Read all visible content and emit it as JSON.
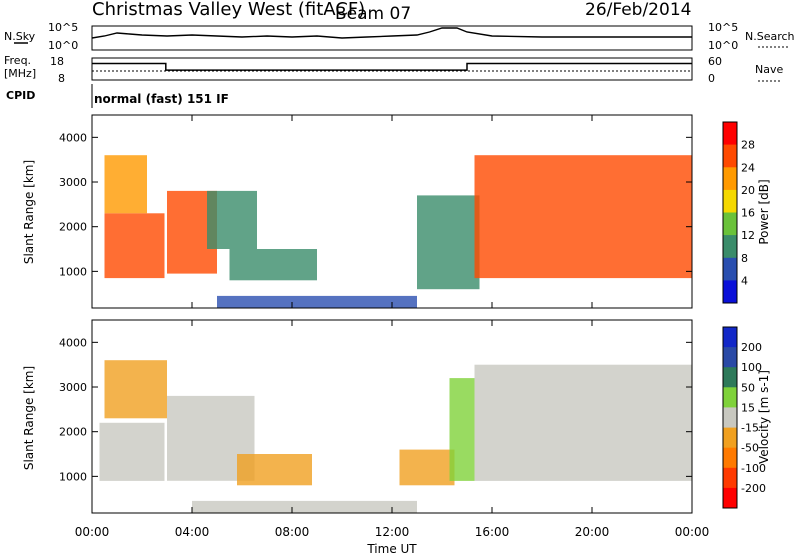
{
  "header": {
    "station": "Christmas Valley West (fitACF)",
    "beam": "Beam 07",
    "date": "26/Feb/2014"
  },
  "strip_labels": {
    "nsky": "N.Sky",
    "nsky_ticks": [
      "10^5",
      "10^0"
    ],
    "nsearch": "N.Search",
    "nsearch_ticks": [
      "10^5",
      "10^0"
    ],
    "freq_title": "Freq.",
    "freq_unit": "[MHz]",
    "freq_ticks": [
      "18",
      "8"
    ],
    "nave": "Nave",
    "nave_ticks": [
      "60",
      "0"
    ],
    "cpid": "CPID",
    "mode": "normal (fast) 151 IF"
  },
  "chart_data": [
    {
      "type": "line",
      "name": "noise",
      "series": [
        {
          "x_hours": [
            0,
            0.5,
            1,
            1.5,
            2,
            3,
            4,
            5,
            6,
            7,
            8,
            9,
            10,
            11,
            12,
            13,
            13.5,
            14,
            14.3,
            14.6,
            15,
            16,
            18,
            20,
            22,
            24
          ],
          "values": [
            1,
            1.2,
            1.5,
            1.4,
            1.3,
            1.2,
            1.3,
            1.2,
            1.1,
            1.2,
            1.1,
            1.2,
            1.0,
            1.1,
            1.2,
            1.3,
            1.6,
            2.2,
            3.5,
            2.8,
            1.6,
            1.2,
            1.1,
            1.1,
            1.1,
            1.1
          ]
        }
      ],
      "ylim": [
        0,
        5
      ]
    },
    {
      "type": "line",
      "name": "frequency",
      "series": [
        {
          "x_hours": [
            0,
            2.95,
            2.95,
            15,
            15,
            24
          ],
          "values": [
            15.5,
            15.5,
            12.5,
            12.5,
            15.5,
            15.5
          ]
        }
      ],
      "ylim": [
        8,
        18
      ],
      "xlim": [
        0,
        24
      ]
    },
    {
      "type": "heatmap",
      "name": "power",
      "ylabel": "Slant Range [km]",
      "yticks": [
        "1000",
        "2000",
        "3000",
        "4000"
      ],
      "ylim": [
        180,
        4500
      ],
      "xlim": [
        0,
        24
      ],
      "colorbar_label": "Power [dB]",
      "colorbar_ticks": [
        "28",
        "24",
        "20",
        "16",
        "12",
        "8",
        "4"
      ],
      "colorbar_colors": [
        "#ff0000",
        "#ff4a00",
        "#ff9a00",
        "#f5d800",
        "#6ac23a",
        "#3a8c6a",
        "#2a4fb0",
        "#0a10d8"
      ],
      "regions": [
        {
          "t": [
            0.5,
            2.9
          ],
          "r": [
            850,
            2300
          ],
          "level": 27
        },
        {
          "t": [
            0.5,
            2.2
          ],
          "r": [
            2300,
            3600
          ],
          "level": 23
        },
        {
          "t": [
            3.0,
            5.0
          ],
          "r": [
            950,
            2800
          ],
          "level": 25
        },
        {
          "t": [
            4.6,
            6.6
          ],
          "r": [
            1500,
            2800
          ],
          "level": 8
        },
        {
          "t": [
            5.5,
            9.0
          ],
          "r": [
            800,
            1500
          ],
          "level": 9
        },
        {
          "t": [
            13.0,
            15.5
          ],
          "r": [
            600,
            2700
          ],
          "level": 10
        },
        {
          "t": [
            15.3,
            24.0
          ],
          "r": [
            850,
            3600
          ],
          "level": 26
        },
        {
          "t": [
            5.0,
            13.0
          ],
          "r": [
            180,
            450
          ],
          "level": 6
        }
      ]
    },
    {
      "type": "heatmap",
      "name": "velocity",
      "xlabel": "Time UT",
      "ylabel": "Slant Range [km]",
      "xticks": [
        "00:00",
        "04:00",
        "08:00",
        "12:00",
        "16:00",
        "20:00",
        "00:00"
      ],
      "yticks": [
        "1000",
        "2000",
        "3000",
        "4000"
      ],
      "ylim": [
        180,
        4500
      ],
      "xlim": [
        0,
        24
      ],
      "colorbar_label": "Velocity [m s-1]",
      "colorbar_ticks": [
        "200",
        "100",
        "50",
        "15",
        "-15",
        "-50",
        "-100",
        "-200"
      ],
      "colorbar_colors": [
        "#1228c8",
        "#2a4aa6",
        "#2e7a5a",
        "#7fd23a",
        "#c8c8c0",
        "#f0a020",
        "#ff7a00",
        "#ff3a00",
        "#ff0000"
      ],
      "regions": [
        {
          "t": [
            0.3,
            2.9
          ],
          "r": [
            900,
            2200
          ],
          "level": 0
        },
        {
          "t": [
            0.5,
            3.0
          ],
          "r": [
            2300,
            3600
          ],
          "level": -40
        },
        {
          "t": [
            3.0,
            6.5
          ],
          "r": [
            900,
            2800
          ],
          "level": 0
        },
        {
          "t": [
            5.8,
            8.8
          ],
          "r": [
            800,
            1500
          ],
          "level": -45
        },
        {
          "t": [
            12.3,
            14.5
          ],
          "r": [
            800,
            1600
          ],
          "level": -45
        },
        {
          "t": [
            14.3,
            15.3
          ],
          "r": [
            900,
            3200
          ],
          "level": 40
        },
        {
          "t": [
            15.3,
            24.0
          ],
          "r": [
            900,
            3500
          ],
          "level": 0
        },
        {
          "t": [
            4.0,
            13.0
          ],
          "r": [
            180,
            450
          ],
          "level": 0
        }
      ]
    }
  ]
}
